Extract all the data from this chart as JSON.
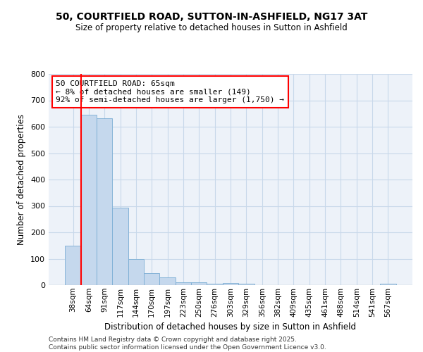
{
  "title": "50, COURTFIELD ROAD, SUTTON-IN-ASHFIELD, NG17 3AT",
  "subtitle": "Size of property relative to detached houses in Sutton in Ashfield",
  "xlabel": "Distribution of detached houses by size in Sutton in Ashfield",
  "ylabel": "Number of detached properties",
  "categories": [
    "38sqm",
    "64sqm",
    "91sqm",
    "117sqm",
    "144sqm",
    "170sqm",
    "197sqm",
    "223sqm",
    "250sqm",
    "276sqm",
    "303sqm",
    "329sqm",
    "356sqm",
    "382sqm",
    "409sqm",
    "435sqm",
    "461sqm",
    "488sqm",
    "514sqm",
    "541sqm",
    "567sqm"
  ],
  "values": [
    150,
    645,
    633,
    293,
    100,
    46,
    30,
    10,
    10,
    5,
    8,
    5,
    0,
    0,
    0,
    0,
    0,
    0,
    0,
    0,
    5
  ],
  "bar_color": "#c5d8ed",
  "bar_edge_color": "#7aadd4",
  "grid_color": "#c8d8ea",
  "background_color": "#edf2f9",
  "vline_color": "red",
  "vline_x_index": 0.5,
  "annotation_title": "50 COURTFIELD ROAD: 65sqm",
  "annotation_line2": "← 8% of detached houses are smaller (149)",
  "annotation_line3": "92% of semi-detached houses are larger (1,750) →",
  "annotation_box_color": "red",
  "ylim": [
    0,
    800
  ],
  "yticks": [
    0,
    100,
    200,
    300,
    400,
    500,
    600,
    700,
    800
  ],
  "footer1": "Contains HM Land Registry data © Crown copyright and database right 2025.",
  "footer2": "Contains public sector information licensed under the Open Government Licence v3.0."
}
